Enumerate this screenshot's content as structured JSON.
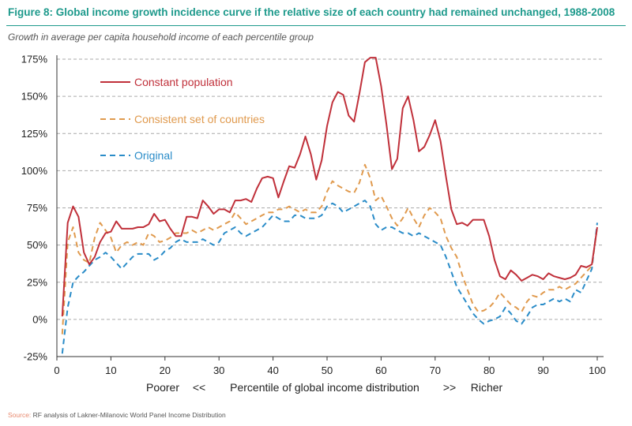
{
  "figure": {
    "title": "Figure 8:  Global income growth incidence curve if the relative size of each country had remained unchanged, 1988-2008",
    "subtitle": "Growth in average per capita household income of each percentile group",
    "source_label": "Source:",
    "source_text": " RF analysis of Lakner-Milanovic World Panel Income Distribution"
  },
  "colors": {
    "constant": "#c0303a",
    "consistent": "#e09a4e",
    "original": "#2a8cc8",
    "grid": "#aaaaaa",
    "title": "#1e9a8c",
    "source": "#e8896e"
  },
  "chart_data": {
    "type": "line",
    "title": "Global income growth incidence curve if the relative size of each country had remained unchanged, 1988-2008",
    "ylabel": "Growth in average per capita household income of each percentile group",
    "xlabel": "Poorer   <<   Percentile of global income distribution   >>   Richer",
    "xlabel_parts": {
      "left": "Poorer",
      "left_arrows": "<<",
      "center": "Percentile of global income distribution",
      "right_arrows": ">>",
      "right": "Richer"
    },
    "xlim": [
      0,
      100
    ],
    "ylim": [
      -25,
      175
    ],
    "x_ticks": [
      "0",
      "10",
      "20",
      "30",
      "40",
      "50",
      "60",
      "70",
      "80",
      "90",
      "100"
    ],
    "y_ticks": [
      "-25%",
      "0%",
      "25%",
      "50%",
      "75%",
      "100%",
      "125%",
      "150%",
      "175%"
    ],
    "grid": "horizontal dashed",
    "legend_position": "top-left",
    "series": [
      {
        "name": "Constant population",
        "style": "solid",
        "points": [
          [
            1,
            2
          ],
          [
            2,
            65
          ],
          [
            3,
            76
          ],
          [
            4,
            69
          ],
          [
            5,
            45
          ],
          [
            6,
            37
          ],
          [
            7,
            42
          ],
          [
            8,
            52
          ],
          [
            9,
            58
          ],
          [
            10,
            59
          ],
          [
            11,
            66
          ],
          [
            12,
            61
          ],
          [
            13,
            61
          ],
          [
            14,
            61
          ],
          [
            15,
            62
          ],
          [
            16,
            62
          ],
          [
            17,
            64
          ],
          [
            18,
            71
          ],
          [
            19,
            66
          ],
          [
            20,
            67
          ],
          [
            21,
            61
          ],
          [
            22,
            56
          ],
          [
            23,
            56
          ],
          [
            24,
            69
          ],
          [
            25,
            69
          ],
          [
            26,
            68
          ],
          [
            27,
            80
          ],
          [
            28,
            76
          ],
          [
            29,
            71
          ],
          [
            30,
            74
          ],
          [
            31,
            74
          ],
          [
            32,
            72
          ],
          [
            33,
            80
          ],
          [
            34,
            80
          ],
          [
            35,
            81
          ],
          [
            36,
            79
          ],
          [
            37,
            88
          ],
          [
            38,
            95
          ],
          [
            39,
            96
          ],
          [
            40,
            95
          ],
          [
            41,
            82
          ],
          [
            42,
            93
          ],
          [
            43,
            103
          ],
          [
            44,
            102
          ],
          [
            45,
            111
          ],
          [
            46,
            123
          ],
          [
            47,
            111
          ],
          [
            48,
            94
          ],
          [
            49,
            107
          ],
          [
            50,
            130
          ],
          [
            51,
            146
          ],
          [
            52,
            153
          ],
          [
            53,
            151
          ],
          [
            54,
            137
          ],
          [
            55,
            133
          ],
          [
            56,
            152
          ],
          [
            57,
            173
          ],
          [
            58,
            176
          ],
          [
            59,
            176
          ],
          [
            60,
            157
          ],
          [
            61,
            131
          ],
          [
            62,
            101
          ],
          [
            63,
            108
          ],
          [
            64,
            142
          ],
          [
            65,
            150
          ],
          [
            66,
            134
          ],
          [
            67,
            113
          ],
          [
            68,
            116
          ],
          [
            69,
            124
          ],
          [
            70,
            134
          ],
          [
            71,
            120
          ],
          [
            72,
            96
          ],
          [
            73,
            74
          ],
          [
            74,
            64
          ],
          [
            75,
            65
          ],
          [
            76,
            63
          ],
          [
            77,
            67
          ],
          [
            78,
            67
          ],
          [
            79,
            67
          ],
          [
            80,
            56
          ],
          [
            81,
            40
          ],
          [
            82,
            29
          ],
          [
            83,
            27
          ],
          [
            84,
            33
          ],
          [
            85,
            30
          ],
          [
            86,
            26
          ],
          [
            87,
            28
          ],
          [
            88,
            30
          ],
          [
            89,
            29
          ],
          [
            90,
            27
          ],
          [
            91,
            31
          ],
          [
            92,
            29
          ],
          [
            93,
            28
          ],
          [
            94,
            27
          ],
          [
            95,
            28
          ],
          [
            96,
            30
          ],
          [
            97,
            36
          ],
          [
            98,
            35
          ],
          [
            99,
            37
          ],
          [
            100,
            62
          ]
        ]
      },
      {
        "name": "Consistent set of countries",
        "style": "dashed",
        "points": [
          [
            1,
            -10
          ],
          [
            2,
            52
          ],
          [
            3,
            62
          ],
          [
            4,
            45
          ],
          [
            5,
            40
          ],
          [
            6,
            38
          ],
          [
            7,
            55
          ],
          [
            8,
            65
          ],
          [
            9,
            60
          ],
          [
            10,
            55
          ],
          [
            11,
            45
          ],
          [
            12,
            50
          ],
          [
            13,
            52
          ],
          [
            14,
            50
          ],
          [
            15,
            52
          ],
          [
            16,
            50
          ],
          [
            17,
            58
          ],
          [
            18,
            56
          ],
          [
            19,
            52
          ],
          [
            20,
            53
          ],
          [
            21,
            55
          ],
          [
            22,
            58
          ],
          [
            23,
            58
          ],
          [
            24,
            58
          ],
          [
            25,
            60
          ],
          [
            26,
            58
          ],
          [
            27,
            60
          ],
          [
            28,
            62
          ],
          [
            29,
            60
          ],
          [
            30,
            62
          ],
          [
            31,
            64
          ],
          [
            32,
            66
          ],
          [
            33,
            72
          ],
          [
            34,
            68
          ],
          [
            35,
            64
          ],
          [
            36,
            66
          ],
          [
            37,
            68
          ],
          [
            38,
            70
          ],
          [
            39,
            72
          ],
          [
            40,
            72
          ],
          [
            41,
            74
          ],
          [
            42,
            74
          ],
          [
            43,
            76
          ],
          [
            44,
            74
          ],
          [
            45,
            72
          ],
          [
            46,
            74
          ],
          [
            47,
            72
          ],
          [
            48,
            72
          ],
          [
            49,
            76
          ],
          [
            50,
            86
          ],
          [
            51,
            93
          ],
          [
            52,
            90
          ],
          [
            53,
            88
          ],
          [
            54,
            86
          ],
          [
            55,
            85
          ],
          [
            56,
            92
          ],
          [
            57,
            104
          ],
          [
            58,
            95
          ],
          [
            59,
            80
          ],
          [
            60,
            83
          ],
          [
            61,
            76
          ],
          [
            62,
            68
          ],
          [
            63,
            63
          ],
          [
            64,
            68
          ],
          [
            65,
            75
          ],
          [
            66,
            68
          ],
          [
            67,
            62
          ],
          [
            68,
            70
          ],
          [
            69,
            75
          ],
          [
            70,
            72
          ],
          [
            71,
            68
          ],
          [
            72,
            56
          ],
          [
            73,
            48
          ],
          [
            74,
            42
          ],
          [
            75,
            30
          ],
          [
            76,
            20
          ],
          [
            77,
            10
          ],
          [
            78,
            5
          ],
          [
            79,
            6
          ],
          [
            80,
            8
          ],
          [
            81,
            12
          ],
          [
            82,
            18
          ],
          [
            83,
            14
          ],
          [
            84,
            10
          ],
          [
            85,
            8
          ],
          [
            86,
            5
          ],
          [
            87,
            12
          ],
          [
            88,
            16
          ],
          [
            89,
            15
          ],
          [
            90,
            18
          ],
          [
            91,
            20
          ],
          [
            92,
            20
          ],
          [
            93,
            22
          ],
          [
            94,
            20
          ],
          [
            95,
            22
          ],
          [
            96,
            24
          ],
          [
            97,
            28
          ],
          [
            98,
            32
          ],
          [
            99,
            36
          ],
          [
            100,
            62
          ]
        ]
      },
      {
        "name": "Original",
        "style": "dashed",
        "points": [
          [
            1,
            -23
          ],
          [
            2,
            8
          ],
          [
            3,
            25
          ],
          [
            4,
            29
          ],
          [
            5,
            32
          ],
          [
            6,
            36
          ],
          [
            7,
            40
          ],
          [
            8,
            42
          ],
          [
            9,
            45
          ],
          [
            10,
            42
          ],
          [
            11,
            38
          ],
          [
            12,
            34
          ],
          [
            13,
            38
          ],
          [
            14,
            42
          ],
          [
            15,
            44
          ],
          [
            16,
            44
          ],
          [
            17,
            44
          ],
          [
            18,
            40
          ],
          [
            19,
            42
          ],
          [
            20,
            46
          ],
          [
            21,
            48
          ],
          [
            22,
            52
          ],
          [
            23,
            54
          ],
          [
            24,
            52
          ],
          [
            25,
            52
          ],
          [
            26,
            52
          ],
          [
            27,
            54
          ],
          [
            28,
            52
          ],
          [
            29,
            50
          ],
          [
            30,
            52
          ],
          [
            31,
            58
          ],
          [
            32,
            60
          ],
          [
            33,
            62
          ],
          [
            34,
            58
          ],
          [
            35,
            56
          ],
          [
            36,
            58
          ],
          [
            37,
            60
          ],
          [
            38,
            62
          ],
          [
            39,
            66
          ],
          [
            40,
            70
          ],
          [
            41,
            68
          ],
          [
            42,
            66
          ],
          [
            43,
            66
          ],
          [
            44,
            70
          ],
          [
            45,
            70
          ],
          [
            46,
            68
          ],
          [
            47,
            68
          ],
          [
            48,
            68
          ],
          [
            49,
            70
          ],
          [
            50,
            76
          ],
          [
            51,
            78
          ],
          [
            52,
            76
          ],
          [
            53,
            72
          ],
          [
            54,
            74
          ],
          [
            55,
            76
          ],
          [
            56,
            78
          ],
          [
            57,
            80
          ],
          [
            58,
            76
          ],
          [
            59,
            64
          ],
          [
            60,
            60
          ],
          [
            61,
            62
          ],
          [
            62,
            62
          ],
          [
            63,
            60
          ],
          [
            64,
            58
          ],
          [
            65,
            58
          ],
          [
            66,
            56
          ],
          [
            67,
            58
          ],
          [
            68,
            56
          ],
          [
            69,
            54
          ],
          [
            70,
            52
          ],
          [
            71,
            50
          ],
          [
            72,
            42
          ],
          [
            73,
            32
          ],
          [
            74,
            22
          ],
          [
            75,
            16
          ],
          [
            76,
            10
          ],
          [
            77,
            4
          ],
          [
            78,
            0
          ],
          [
            79,
            -3
          ],
          [
            80,
            -1
          ],
          [
            81,
            0
          ],
          [
            82,
            2
          ],
          [
            83,
            8
          ],
          [
            84,
            4
          ],
          [
            85,
            -1
          ],
          [
            86,
            -3
          ],
          [
            87,
            2
          ],
          [
            88,
            8
          ],
          [
            89,
            10
          ],
          [
            90,
            10
          ],
          [
            91,
            12
          ],
          [
            92,
            14
          ],
          [
            93,
            12
          ],
          [
            94,
            14
          ],
          [
            95,
            12
          ],
          [
            96,
            20
          ],
          [
            97,
            18
          ],
          [
            98,
            26
          ],
          [
            99,
            34
          ],
          [
            100,
            65
          ]
        ]
      }
    ]
  }
}
